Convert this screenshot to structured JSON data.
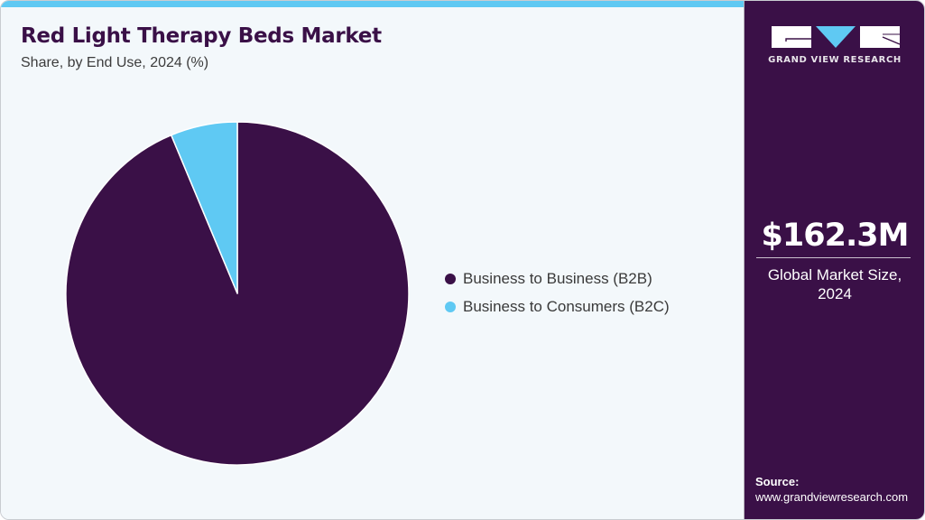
{
  "header": {
    "title": "Red Light Therapy Beds Market",
    "subtitle": "Share, by End Use, 2024 (%)"
  },
  "legend": {
    "items": [
      {
        "label": "Business to Business (B2B)",
        "color": "#3a1047"
      },
      {
        "label": "Business to Consumers (B2C)",
        "color": "#5fc9f3"
      }
    ]
  },
  "sidebar": {
    "logo_icon": "grand-view-research-logo",
    "logo_text": "GRAND VIEW RESEARCH",
    "market_size_value": "$162.3M",
    "market_size_label_line1": "Global Market Size,",
    "market_size_label_line2": "2024",
    "source_heading": "Source:",
    "source_url": "www.grandviewresearch.com"
  },
  "colors": {
    "accent_dark": "#3a1047",
    "accent_light": "#5fc9f3",
    "background": "#f3f8fb"
  },
  "chart_data": {
    "type": "pie",
    "title": "Red Light Therapy Beds Market",
    "subtitle": "Share, by End Use, 2024 (%)",
    "categories": [
      "Business to Business (B2B)",
      "Business to Consumers (B2C)"
    ],
    "values": [
      93.7,
      6.3
    ],
    "colors": [
      "#3a1047",
      "#5fc9f3"
    ],
    "start_angle_deg": 0,
    "direction": "clockwise",
    "legend_position": "right",
    "data_labels": false
  }
}
